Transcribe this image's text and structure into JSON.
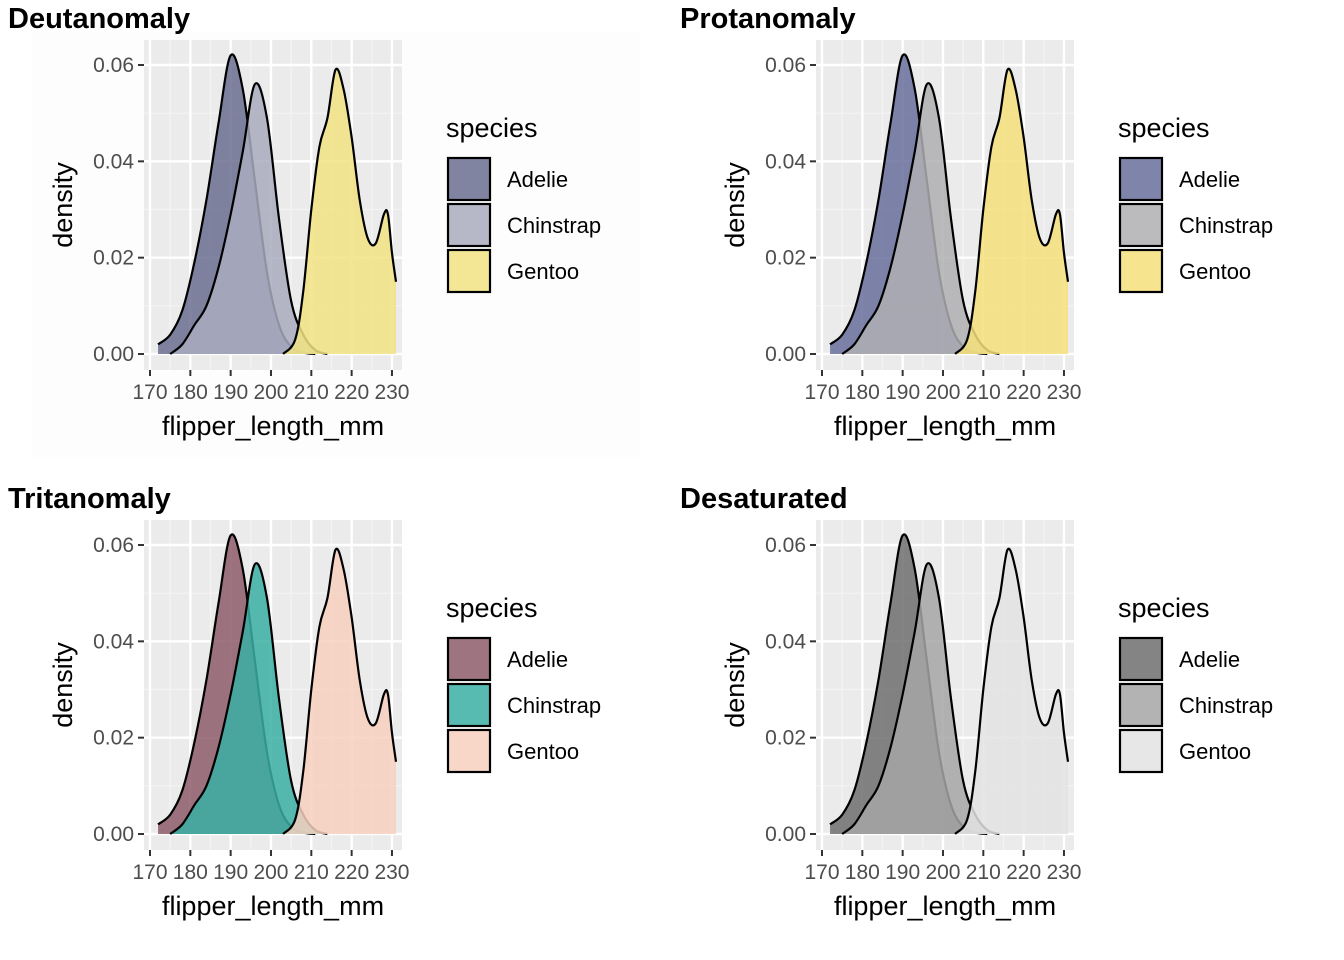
{
  "chart_data": [
    {
      "type": "area",
      "title": "Deutanomaly",
      "xlabel": "flipper_length_mm",
      "ylabel": "density",
      "xlim": [
        170,
        231
      ],
      "ylim": [
        0,
        0.062
      ],
      "x_ticks": [
        "170",
        "180",
        "190",
        "200",
        "210",
        "220",
        "230"
      ],
      "y_ticks": [
        "0.00",
        "0.02",
        "0.04",
        "0.06"
      ],
      "legend_title": "species",
      "legend_position": "right",
      "grid": true,
      "series": [
        {
          "name": "Adelie",
          "color": "#6B6F90",
          "x": [
            172,
            175,
            178,
            181,
            184,
            187,
            190,
            193,
            196,
            199,
            202,
            205,
            208,
            211
          ],
          "y": [
            0.002,
            0.004,
            0.009,
            0.019,
            0.032,
            0.048,
            0.062,
            0.055,
            0.036,
            0.017,
            0.006,
            0.0015,
            0.0003,
            0.0
          ]
        },
        {
          "name": "Chinstrap",
          "color": "#A9ACBE",
          "x": [
            175,
            178,
            181,
            184,
            187,
            190,
            193,
            196,
            199,
            202,
            205,
            208,
            211,
            214
          ],
          "y": [
            0.0,
            0.002,
            0.006,
            0.01,
            0.018,
            0.029,
            0.042,
            0.056,
            0.049,
            0.028,
            0.011,
            0.004,
            0.0008,
            0.0
          ]
        },
        {
          "name": "Gentoo",
          "color": "#F1E383",
          "x": [
            203,
            206,
            208,
            210,
            212,
            214,
            216,
            218,
            220,
            222,
            224,
            226,
            228,
            229,
            230,
            231
          ],
          "y": [
            0.0,
            0.003,
            0.013,
            0.03,
            0.043,
            0.049,
            0.059,
            0.055,
            0.045,
            0.032,
            0.024,
            0.023,
            0.029,
            0.029,
            0.021,
            0.015
          ]
        }
      ]
    },
    {
      "type": "area",
      "title": "Protanomaly",
      "xlabel": "flipper_length_mm",
      "ylabel": "density",
      "xlim": [
        170,
        231
      ],
      "ylim": [
        0,
        0.062
      ],
      "x_ticks": [
        "170",
        "180",
        "190",
        "200",
        "210",
        "220",
        "230"
      ],
      "y_ticks": [
        "0.00",
        "0.02",
        "0.04",
        "0.06"
      ],
      "legend_title": "species",
      "legend_position": "right",
      "grid": true,
      "series": [
        {
          "name": "Adelie",
          "color": "#686F9C",
          "x": [
            172,
            175,
            178,
            181,
            184,
            187,
            190,
            193,
            196,
            199,
            202,
            205,
            208,
            211
          ],
          "y": [
            0.002,
            0.004,
            0.009,
            0.019,
            0.032,
            0.048,
            0.062,
            0.055,
            0.036,
            0.017,
            0.006,
            0.0015,
            0.0003,
            0.0
          ]
        },
        {
          "name": "Chinstrap",
          "color": "#AFAFB3",
          "x": [
            175,
            178,
            181,
            184,
            187,
            190,
            193,
            196,
            199,
            202,
            205,
            208,
            211,
            214
          ],
          "y": [
            0.0,
            0.002,
            0.006,
            0.01,
            0.018,
            0.029,
            0.042,
            0.056,
            0.049,
            0.028,
            0.011,
            0.004,
            0.0008,
            0.0
          ]
        },
        {
          "name": "Gentoo",
          "color": "#F5DF7A",
          "x": [
            203,
            206,
            208,
            210,
            212,
            214,
            216,
            218,
            220,
            222,
            224,
            226,
            228,
            229,
            230,
            231
          ],
          "y": [
            0.0,
            0.003,
            0.013,
            0.03,
            0.043,
            0.049,
            0.059,
            0.055,
            0.045,
            0.032,
            0.024,
            0.023,
            0.029,
            0.029,
            0.021,
            0.015
          ]
        }
      ]
    },
    {
      "type": "area",
      "title": "Tritanomaly",
      "xlabel": "flipper_length_mm",
      "ylabel": "density",
      "xlim": [
        170,
        231
      ],
      "ylim": [
        0,
        0.062
      ],
      "x_ticks": [
        "170",
        "180",
        "190",
        "200",
        "210",
        "220",
        "230"
      ],
      "y_ticks": [
        "0.00",
        "0.02",
        "0.04",
        "0.06"
      ],
      "legend_title": "species",
      "legend_position": "right",
      "grid": true,
      "series": [
        {
          "name": "Adelie",
          "color": "#8C5C6A",
          "x": [
            172,
            175,
            178,
            181,
            184,
            187,
            190,
            193,
            196,
            199,
            202,
            205,
            208,
            211
          ],
          "y": [
            0.002,
            0.004,
            0.009,
            0.019,
            0.032,
            0.048,
            0.062,
            0.055,
            0.036,
            0.017,
            0.006,
            0.0015,
            0.0003,
            0.0
          ]
        },
        {
          "name": "Chinstrap",
          "color": "#3AAFA3",
          "x": [
            175,
            178,
            181,
            184,
            187,
            190,
            193,
            196,
            199,
            202,
            205,
            208,
            211,
            214
          ],
          "y": [
            0.0,
            0.002,
            0.006,
            0.01,
            0.018,
            0.029,
            0.042,
            0.056,
            0.049,
            0.028,
            0.011,
            0.004,
            0.0008,
            0.0
          ]
        },
        {
          "name": "Gentoo",
          "color": "#F7D0C0",
          "x": [
            203,
            206,
            208,
            210,
            212,
            214,
            216,
            218,
            220,
            222,
            224,
            226,
            228,
            229,
            230,
            231
          ],
          "y": [
            0.0,
            0.003,
            0.013,
            0.03,
            0.043,
            0.049,
            0.059,
            0.055,
            0.045,
            0.032,
            0.024,
            0.023,
            0.029,
            0.029,
            0.021,
            0.015
          ]
        }
      ]
    },
    {
      "type": "area",
      "title": "Desaturated",
      "xlabel": "flipper_length_mm",
      "ylabel": "density",
      "xlim": [
        170,
        231
      ],
      "ylim": [
        0,
        0.062
      ],
      "x_ticks": [
        "170",
        "180",
        "190",
        "200",
        "210",
        "220",
        "230"
      ],
      "y_ticks": [
        "0.00",
        "0.02",
        "0.04",
        "0.06"
      ],
      "legend_title": "species",
      "legend_position": "right",
      "grid": true,
      "series": [
        {
          "name": "Adelie",
          "color": "#6F6F6F",
          "x": [
            172,
            175,
            178,
            181,
            184,
            187,
            190,
            193,
            196,
            199,
            202,
            205,
            208,
            211
          ],
          "y": [
            0.002,
            0.004,
            0.009,
            0.019,
            0.032,
            0.048,
            0.062,
            0.055,
            0.036,
            0.017,
            0.006,
            0.0015,
            0.0003,
            0.0
          ]
        },
        {
          "name": "Chinstrap",
          "color": "#A6A6A6",
          "x": [
            175,
            178,
            181,
            184,
            187,
            190,
            193,
            196,
            199,
            202,
            205,
            208,
            211,
            214
          ],
          "y": [
            0.0,
            0.002,
            0.006,
            0.01,
            0.018,
            0.029,
            0.042,
            0.056,
            0.049,
            0.028,
            0.011,
            0.004,
            0.0008,
            0.0
          ]
        },
        {
          "name": "Gentoo",
          "color": "#E3E3E3",
          "x": [
            203,
            206,
            208,
            210,
            212,
            214,
            216,
            218,
            220,
            222,
            224,
            226,
            228,
            229,
            230,
            231
          ],
          "y": [
            0.0,
            0.003,
            0.013,
            0.03,
            0.043,
            0.049,
            0.059,
            0.055,
            0.045,
            0.032,
            0.024,
            0.023,
            0.029,
            0.029,
            0.021,
            0.015
          ]
        }
      ]
    }
  ]
}
